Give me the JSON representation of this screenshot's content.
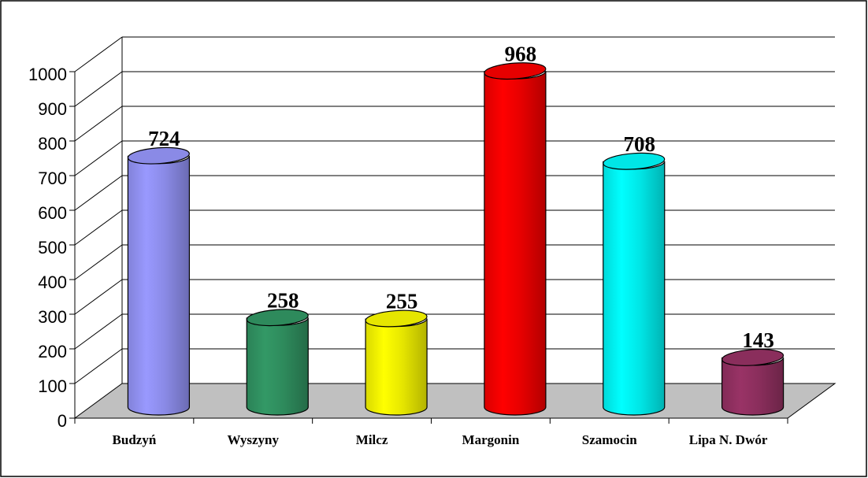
{
  "chart_data": {
    "type": "bar",
    "categories": [
      "Budzyń",
      "Wyszyny",
      "Milcz",
      "Margonin",
      "Szamocin",
      "Lipa N. Dwór"
    ],
    "values": [
      724,
      258,
      255,
      968,
      708,
      143
    ],
    "colors": [
      "#9999ff",
      "#339966",
      "#ffff00",
      "#ff0000",
      "#00ffff",
      "#993366"
    ],
    "ylim": [
      0,
      1000
    ],
    "yticks": [
      0,
      100,
      200,
      300,
      400,
      500,
      600,
      700,
      800,
      900,
      1000
    ],
    "grid": true
  }
}
